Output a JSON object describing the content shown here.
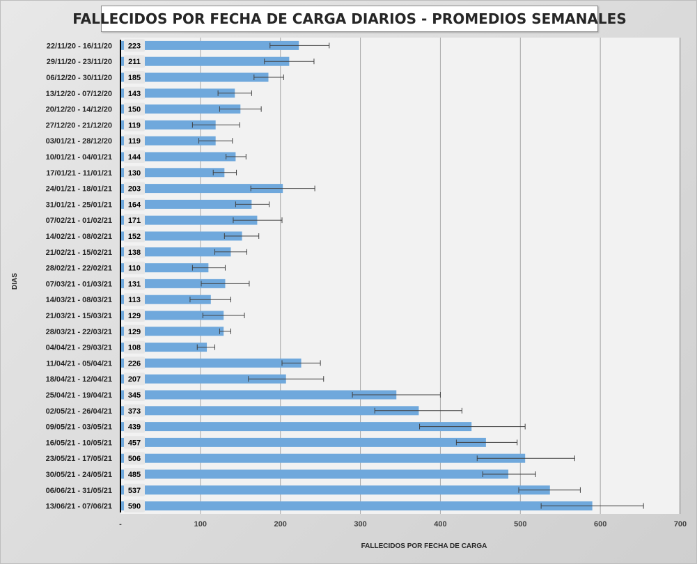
{
  "chart_data": {
    "type": "bar",
    "orientation": "horizontal",
    "title": "FALLECIDOS POR FECHA DE CARGA DIARIOS - PROMEDIOS SEMANALES",
    "xlabel": "FALLECIDOS POR FECHA DE CARGA",
    "ylabel": "DIAS",
    "xlim": [
      0,
      700
    ],
    "x_ticks": [
      "-",
      "100",
      "200",
      "300",
      "400",
      "500",
      "600",
      "700"
    ],
    "x_tick_values": [
      0,
      100,
      200,
      300,
      400,
      500,
      600,
      700
    ],
    "grid": true,
    "bar_color": "#6fa8dc",
    "categories": [
      "22/11/20 - 16/11/20",
      "29/11/20 - 23/11/20",
      "06/12/20 - 30/11/20",
      "13/12/20 - 07/12/20",
      "20/12/20 - 14/12/20",
      "27/12/20 - 21/12/20",
      "03/01/21 - 28/12/20",
      "10/01/21 - 04/01/21",
      "17/01/21 - 11/01/21",
      "24/01/21 - 18/01/21",
      "31/01/21 - 25/01/21",
      "07/02/21 - 01/02/21",
      "14/02/21 - 08/02/21",
      "21/02/21 - 15/02/21",
      "28/02/21 - 22/02/21",
      "07/03/21 - 01/03/21",
      "14/03/21 - 08/03/21",
      "21/03/21 - 15/03/21",
      "28/03/21 - 22/03/21",
      "04/04/21 - 29/03/21",
      "11/04/21 - 05/04/21",
      "18/04/21 - 12/04/21",
      "25/04/21 - 19/04/21",
      "02/05/21 - 26/04/21",
      "09/05/21 - 03/05/21",
      "16/05/21 - 10/05/21",
      "23/05/21 - 17/05/21",
      "30/05/21 - 24/05/21",
      "06/06/21 - 31/05/21",
      "13/06/21 - 07/06/21"
    ],
    "values": [
      223,
      211,
      185,
      143,
      150,
      119,
      119,
      144,
      130,
      203,
      164,
      171,
      152,
      138,
      110,
      131,
      113,
      129,
      129,
      108,
      226,
      207,
      345,
      373,
      439,
      457,
      506,
      485,
      537,
      590
    ],
    "error_low": [
      187,
      180,
      167,
      122,
      124,
      90,
      98,
      132,
      116,
      163,
      144,
      141,
      130,
      118,
      90,
      101,
      87,
      103,
      124,
      96,
      202,
      160,
      290,
      318,
      374,
      420,
      446,
      453,
      498,
      526
    ],
    "error_high": [
      261,
      242,
      204,
      164,
      176,
      149,
      140,
      157,
      145,
      243,
      186,
      202,
      173,
      158,
      131,
      161,
      138,
      155,
      138,
      118,
      250,
      254,
      400,
      427,
      506,
      496,
      568,
      519,
      575,
      654
    ]
  }
}
